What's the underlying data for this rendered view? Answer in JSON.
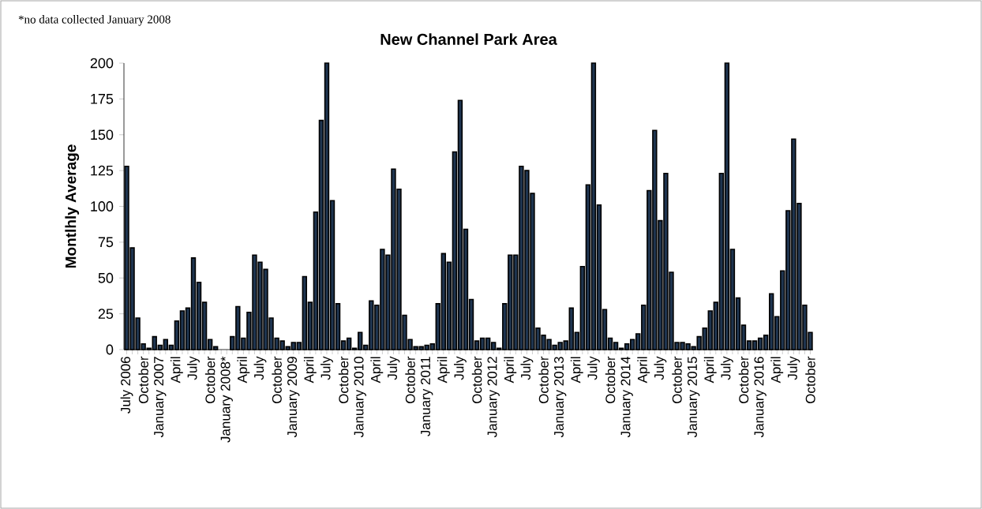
{
  "chart_data": {
    "type": "bar",
    "title": "New Channel Park Area",
    "ylabel": "Montlhly Average",
    "annotations": [
      "*no data collected January 2008"
    ],
    "categories": [
      "July 2006",
      null,
      null,
      "October",
      null,
      null,
      "January 2007",
      null,
      null,
      "April",
      null,
      null,
      "July",
      null,
      null,
      "October",
      null,
      null,
      "January 2008*",
      null,
      null,
      "April",
      null,
      null,
      "July",
      null,
      null,
      "October",
      null,
      null,
      "January 2009",
      null,
      null,
      "April",
      null,
      null,
      "July",
      null,
      null,
      "October",
      null,
      null,
      "January 2010",
      null,
      null,
      "April",
      null,
      null,
      "July",
      null,
      null,
      "October",
      null,
      null,
      "January 2011",
      null,
      null,
      "April",
      null,
      null,
      "July",
      null,
      null,
      "October",
      null,
      null,
      "January 2012",
      null,
      null,
      "April",
      null,
      null,
      "July",
      null,
      null,
      "October",
      null,
      null,
      "January 2013",
      null,
      null,
      "April",
      null,
      null,
      "July",
      null,
      null,
      "October",
      null,
      null,
      "January 2014",
      null,
      null,
      "April",
      null,
      null,
      "July",
      null,
      null,
      "October",
      null,
      null,
      "January 2015",
      null,
      null,
      "April",
      null,
      null,
      "July",
      null,
      null,
      "October",
      null,
      null,
      "January 2016",
      null,
      null,
      "April",
      null,
      null,
      "July",
      null,
      null,
      "October"
    ],
    "values": [
      128,
      71,
      22,
      4,
      1,
      9,
      3,
      7,
      3,
      20,
      27,
      29,
      64,
      47,
      33,
      7,
      2,
      null,
      null,
      9,
      30,
      8,
      26,
      66,
      61,
      56,
      22,
      8,
      6,
      2,
      5,
      5,
      51,
      33,
      96,
      160,
      200,
      104,
      32,
      6,
      8,
      1,
      12,
      3,
      34,
      31,
      70,
      66,
      126,
      112,
      24,
      7,
      2,
      2,
      3,
      4,
      32,
      67,
      61,
      138,
      174,
      84,
      35,
      6,
      8,
      8,
      5,
      1,
      32,
      66,
      66,
      128,
      125,
      109,
      15,
      10,
      7,
      3,
      5,
      6,
      29,
      12,
      58,
      115,
      200,
      101,
      28,
      8,
      5,
      1,
      4,
      7,
      11,
      31,
      111,
      153,
      90,
      123,
      54,
      5,
      5,
      4,
      2,
      9,
      15,
      27,
      33,
      123,
      200,
      70,
      36,
      17,
      6,
      6,
      8,
      10,
      39,
      23,
      55,
      97,
      147,
      102,
      31,
      12
    ],
    "color": "#1f3550",
    "ylim": [
      0,
      200
    ],
    "yticks": [
      0,
      25,
      50,
      75,
      100,
      125,
      150,
      175,
      200
    ]
  }
}
